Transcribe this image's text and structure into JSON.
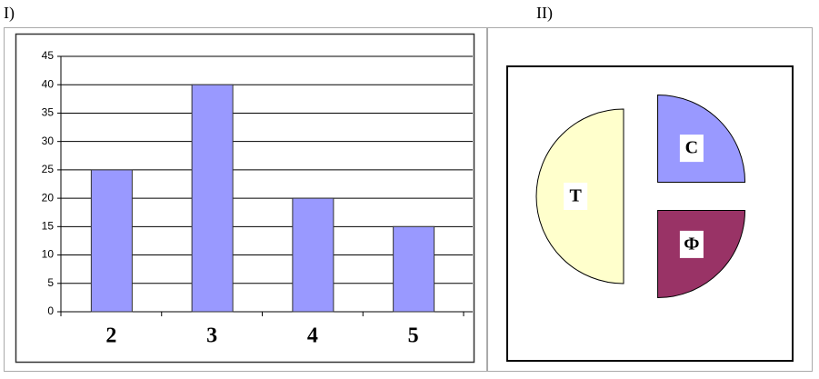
{
  "chart_data": [
    {
      "type": "bar",
      "title": "I)",
      "categories": [
        "2",
        "3",
        "4",
        "5"
      ],
      "values": [
        25,
        40,
        20,
        15
      ],
      "color": "#9999ff",
      "ylim": [
        0,
        45
      ],
      "yticks": [
        0,
        5,
        10,
        15,
        20,
        25,
        30,
        35,
        40,
        45
      ],
      "grid": true
    },
    {
      "type": "pie",
      "title": "II)",
      "categories": [
        "Т",
        "С",
        "Ф"
      ],
      "values": [
        50,
        25,
        25
      ],
      "colors": [
        "#ffffcc",
        "#9999ff",
        "#993366"
      ]
    }
  ]
}
